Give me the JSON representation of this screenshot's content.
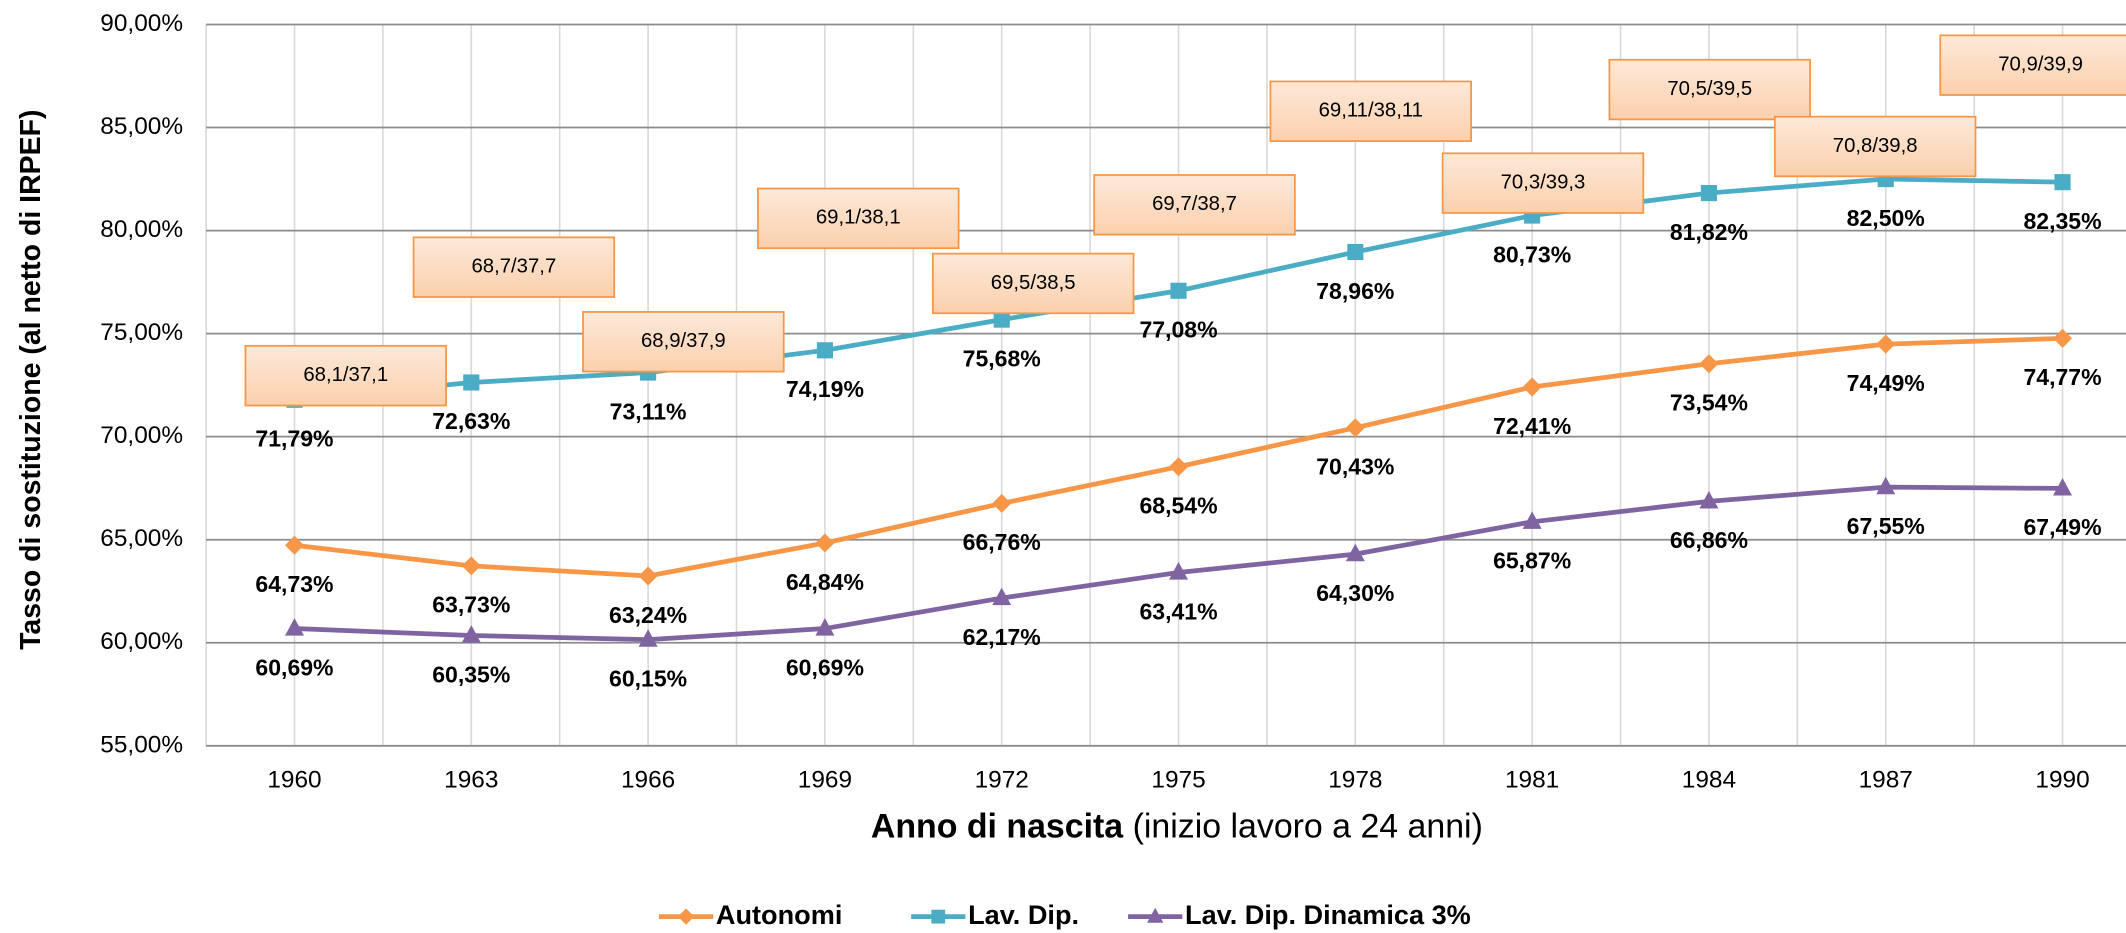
{
  "chart_data": {
    "type": "line",
    "ylabel": "Tasso di sostituzione (al netto di IRPEF)",
    "xlabel": [
      "Anno di nascita",
      "(inizio lavoro a 24 anni)"
    ],
    "categories": [
      "1960",
      "1963",
      "1966",
      "1969",
      "1972",
      "1975",
      "1978",
      "1981",
      "1984",
      "1987",
      "1990"
    ],
    "ylim": [
      55,
      90
    ],
    "yticks": [
      {
        "value": 55,
        "label": "55,00%"
      },
      {
        "value": 60,
        "label": "60,00%"
      },
      {
        "value": 65,
        "label": "65,00%"
      },
      {
        "value": 70,
        "label": "70,00%"
      },
      {
        "value": 75,
        "label": "75,00%"
      },
      {
        "value": 80,
        "label": "80,00%"
      },
      {
        "value": 85,
        "label": "85,00%"
      },
      {
        "value": 90,
        "label": "90,00%"
      }
    ],
    "grid": true,
    "legend": "bottom",
    "series": [
      {
        "name": "Autonomi",
        "color": "#f79646",
        "marker": "diamond",
        "values": [
          64.73,
          63.73,
          63.24,
          64.84,
          66.76,
          68.54,
          70.43,
          72.41,
          73.54,
          74.49,
          74.77
        ],
        "value_labels": [
          "64,73%",
          "63,73%",
          "63,24%",
          "64,84%",
          "66,76%",
          "68,54%",
          "70,43%",
          "72,41%",
          "73,54%",
          "74,49%",
          "74,77%"
        ]
      },
      {
        "name": "Lav. Dip.",
        "color": "#4bacc6",
        "marker": "square",
        "values": [
          71.79,
          72.63,
          73.11,
          74.19,
          75.68,
          77.08,
          78.96,
          80.73,
          81.82,
          82.5,
          82.35
        ],
        "value_labels": [
          "71,79%",
          "72,63%",
          "73,11%",
          "74,19%",
          "75,68%",
          "77,08%",
          "78,96%",
          "80,73%",
          "81,82%",
          "82,50%",
          "82,35%"
        ]
      },
      {
        "name": "Lav. Dip. Dinamica 3%",
        "color": "#8064a2",
        "marker": "triangle",
        "values": [
          60.69,
          60.35,
          60.15,
          60.69,
          62.17,
          63.41,
          64.3,
          65.87,
          66.86,
          67.55,
          67.49
        ],
        "value_labels": [
          "60,69%",
          "60,35%",
          "60,15%",
          "60,69%",
          "62,17%",
          "63,41%",
          "64,30%",
          "65,87%",
          "66,86%",
          "67,55%",
          "67,49%"
        ]
      }
    ],
    "annotations": [
      "68,1/37,1",
      "68,7/37,7",
      "68,9/37,9",
      "69,1/38,1",
      "69,5/38,5",
      "69,7/38,7",
      "69,11/38,11",
      "70,3/39,3",
      "70,5/39,5",
      "70,8/39,8",
      "70,9/39,9"
    ]
  }
}
